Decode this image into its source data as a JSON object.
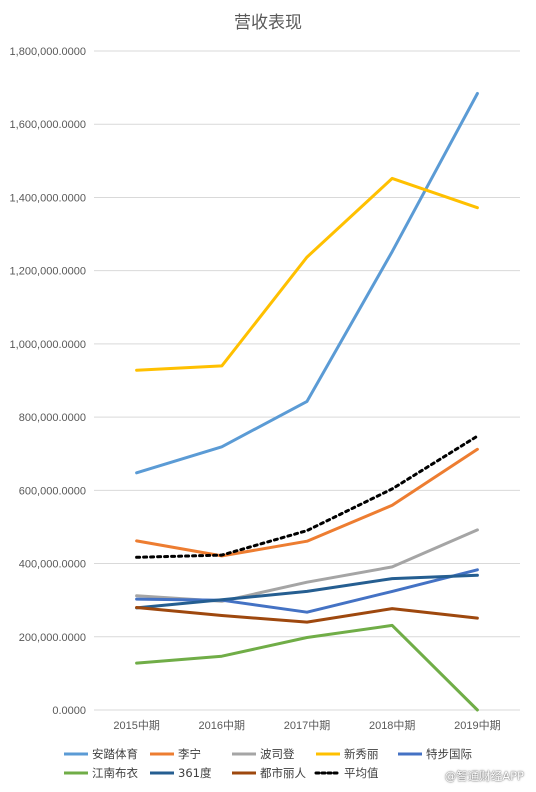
{
  "chart_data": {
    "type": "line",
    "title": "营收表现",
    "categories": [
      "2015中期",
      "2016中期",
      "2017中期",
      "2018中期",
      "2019中期"
    ],
    "ylim": [
      0,
      1800000
    ],
    "yticks": [
      "0.0000",
      "200,000.0000",
      "400,000.0000",
      "600,000.0000",
      "800,000.0000",
      "1,000,000.0000",
      "1,200,000.0000",
      "1,400,000.0000",
      "1,600,000.0000",
      "1,800,000.0000"
    ],
    "grid": true,
    "legend_position": "bottom",
    "series": [
      {
        "name": "安踏体育",
        "color": "#5B9BD5",
        "dash": false,
        "values": [
          648000,
          719000,
          843000,
          1252000,
          1684000
        ]
      },
      {
        "name": "李宁",
        "color": "#ED7D31",
        "dash": false,
        "values": [
          462000,
          421000,
          461000,
          559000,
          712000
        ]
      },
      {
        "name": "波司登",
        "color": "#A5A5A5",
        "dash": false,
        "values": [
          312000,
          297000,
          349000,
          391000,
          492000
        ]
      },
      {
        "name": "新秀丽",
        "color": "#FFC000",
        "dash": false,
        "values": [
          928000,
          940000,
          1237000,
          1452000,
          1372000
        ]
      },
      {
        "name": "特步国际",
        "color": "#4472C4",
        "dash": false,
        "values": [
          303000,
          300000,
          267000,
          324000,
          383000
        ]
      },
      {
        "name": "江南布衣",
        "color": "#70AD47",
        "dash": false,
        "values": [
          128000,
          147000,
          198000,
          231000,
          0
        ]
      },
      {
        "name": "361度",
        "color": "#255E91",
        "dash": false,
        "values": [
          279000,
          301000,
          324000,
          359000,
          368000
        ]
      },
      {
        "name": "都市丽人",
        "color": "#9E480E",
        "dash": false,
        "values": [
          280000,
          258000,
          240000,
          277000,
          251000
        ]
      },
      {
        "name": "平均值",
        "color": "#000000",
        "dash": true,
        "values": [
          417000,
          423000,
          490000,
          604000,
          748000
        ]
      }
    ]
  },
  "watermark": "@智通财经APP"
}
